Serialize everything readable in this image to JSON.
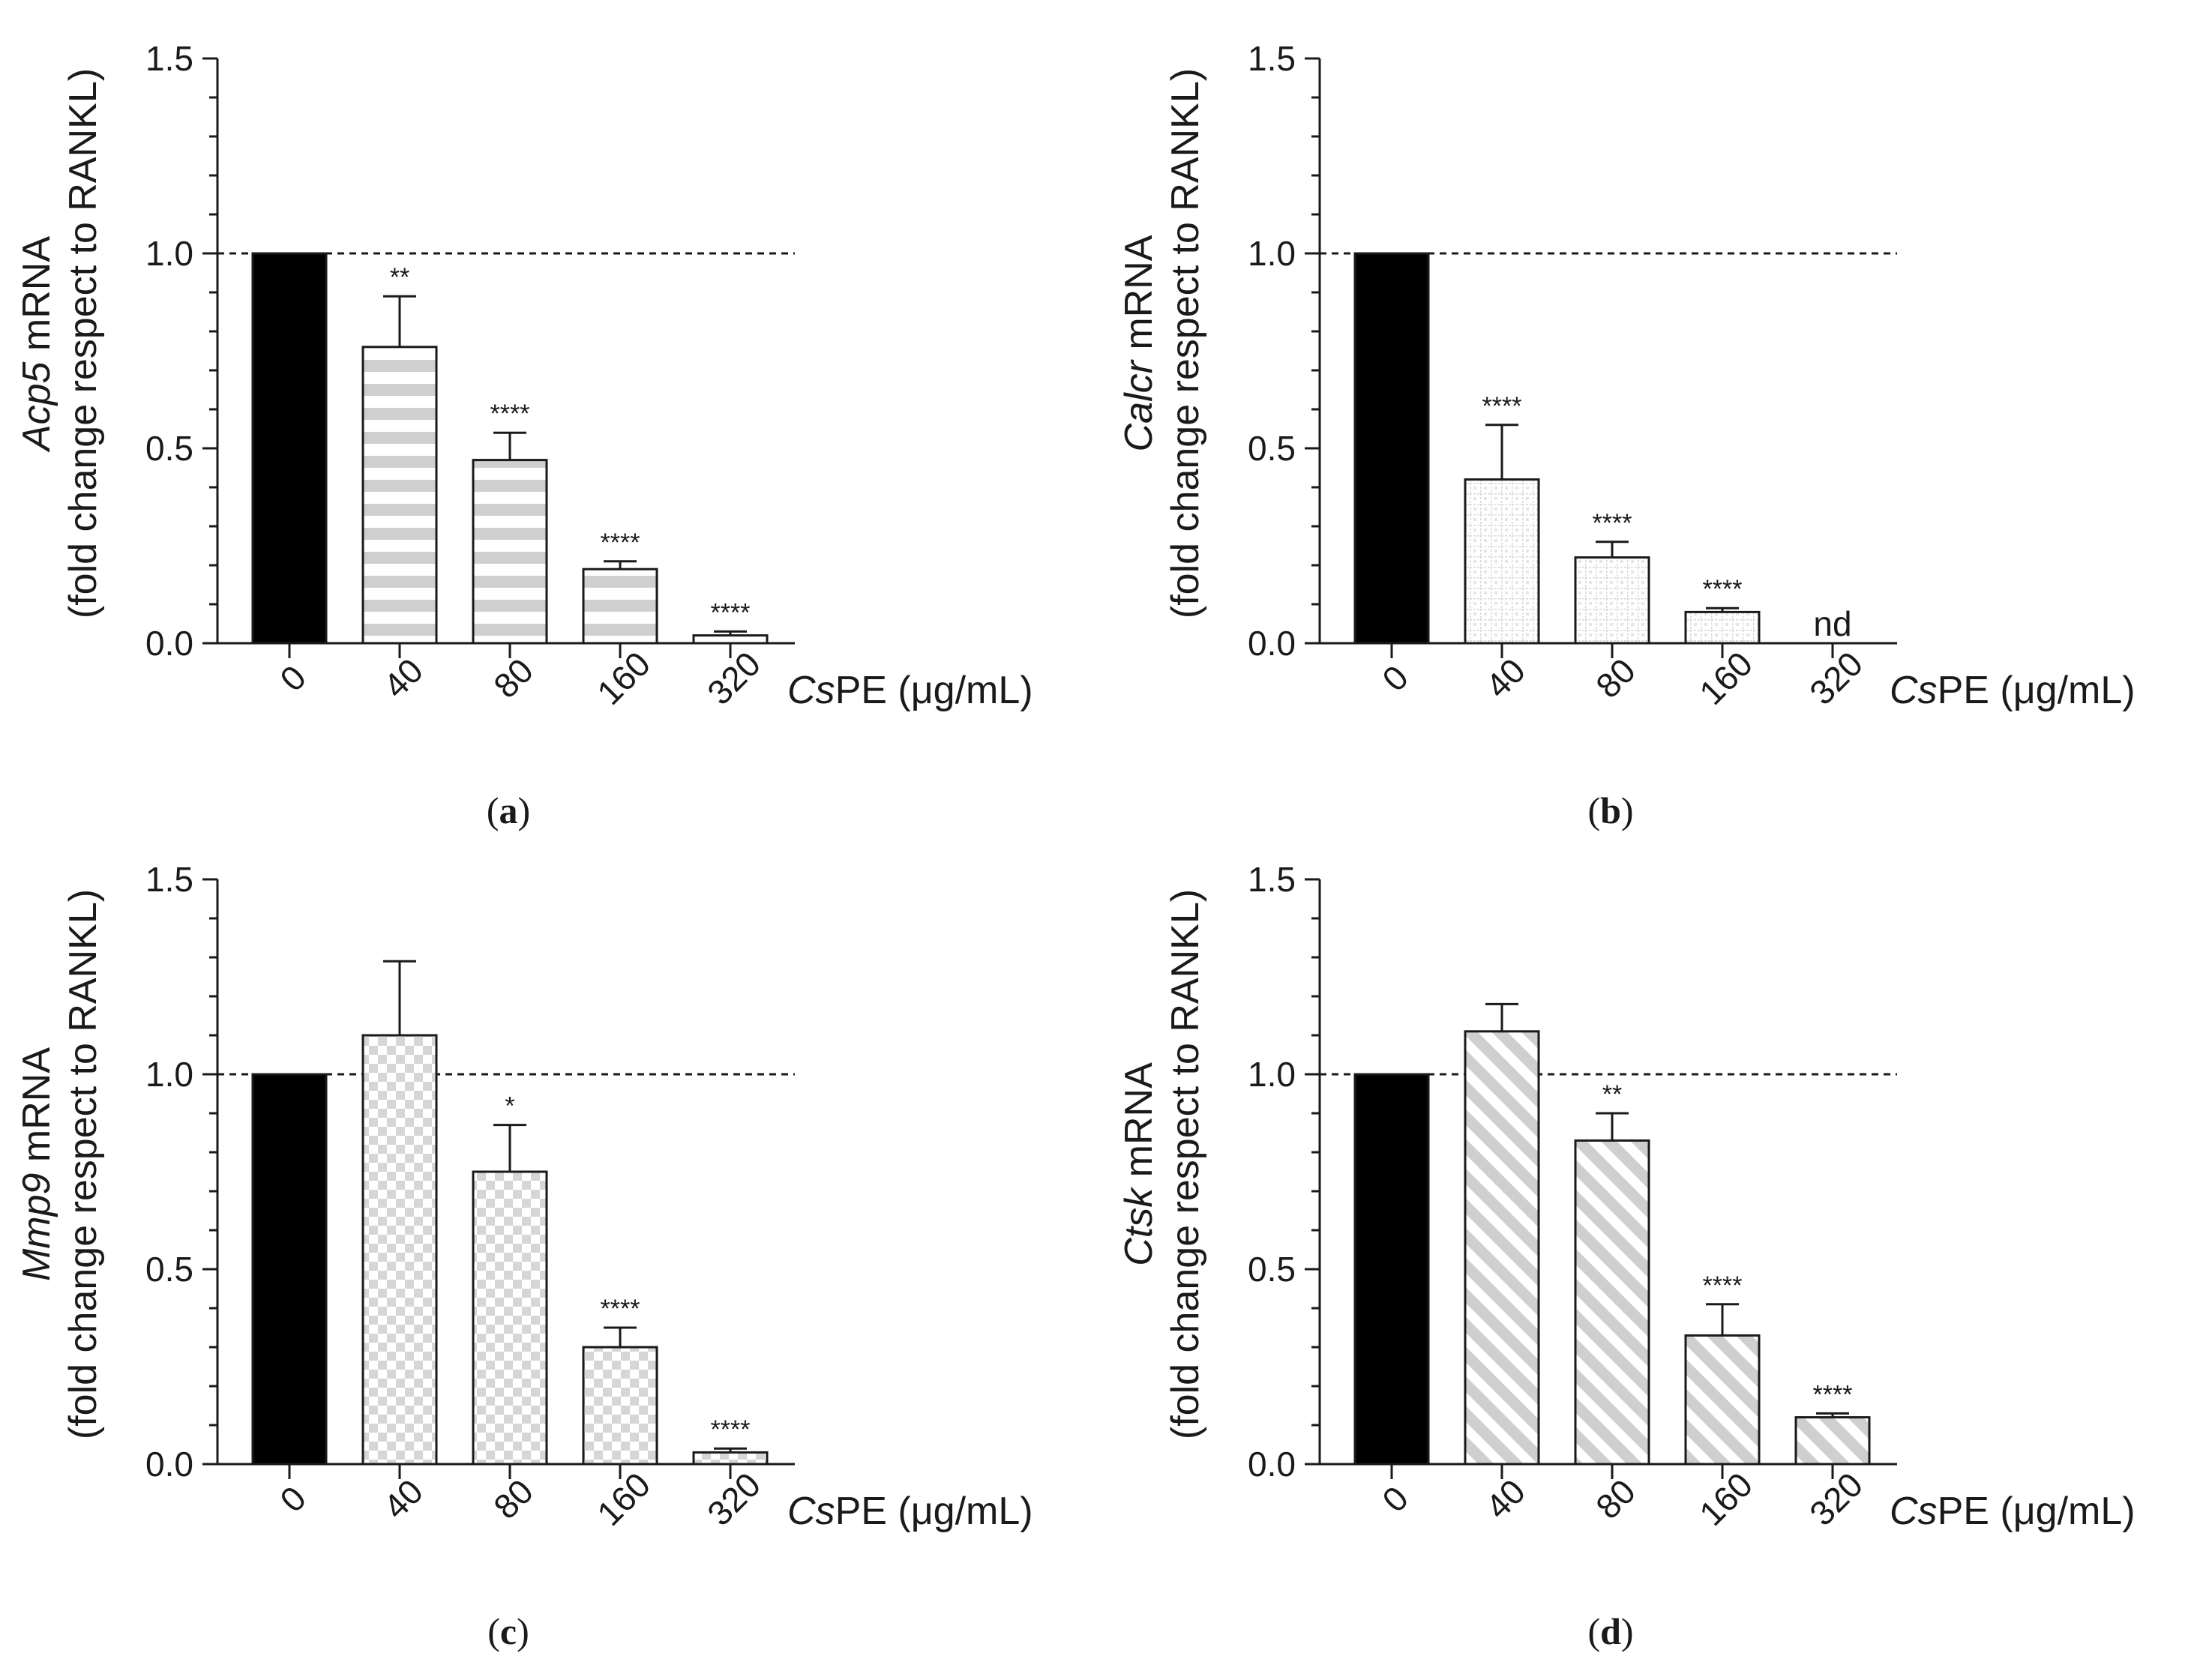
{
  "colors": {
    "axis": "#1a1a1a",
    "control_bar": "#000000",
    "pattern_gray": "#cfcfcf",
    "pattern_light": "#e2e2e2"
  },
  "chart_data": [
    {
      "panel": "(a)",
      "panel_letter": "a",
      "type": "bar",
      "gene": "Acp5",
      "ylabel_gene": "Acp5",
      "ylabel_rest": " mRNA",
      "ylabel_line2": "(fold change respect to RANKL)",
      "xlabel_prefix": "Cs",
      "xlabel_rest": "PE (μg/mL)",
      "categories": [
        "0",
        "40",
        "80",
        "160",
        "320"
      ],
      "values": [
        1.0,
        0.76,
        0.47,
        0.19,
        0.02
      ],
      "errors": [
        0,
        0.13,
        0.07,
        0.02,
        0.01
      ],
      "significance": [
        "",
        "**",
        "****",
        "****",
        "****"
      ],
      "pattern": "horizontal-stripes",
      "reference_line": 1.0,
      "ylim": [
        0,
        1.5
      ],
      "yticks": [
        "0.0",
        "0.5",
        "1.0",
        "1.5"
      ]
    },
    {
      "panel": "(b)",
      "panel_letter": "b",
      "type": "bar",
      "gene": "Calcr",
      "ylabel_gene": "Calcr",
      "ylabel_rest": " mRNA",
      "ylabel_line2": "(fold change respect to RANKL)",
      "xlabel_prefix": "Cs",
      "xlabel_rest": "PE (μg/mL)",
      "categories": [
        "0",
        "40",
        "80",
        "160",
        "320"
      ],
      "values": [
        1.0,
        0.42,
        0.22,
        0.08,
        null
      ],
      "errors": [
        0,
        0.14,
        0.04,
        0.01,
        0
      ],
      "significance": [
        "",
        "****",
        "****",
        "****",
        ""
      ],
      "not_detected_label": "nd",
      "pattern": "dotted-grid",
      "reference_line": 1.0,
      "ylim": [
        0,
        1.5
      ],
      "yticks": [
        "0.0",
        "0.5",
        "1.0",
        "1.5"
      ]
    },
    {
      "panel": "(c)",
      "panel_letter": "c",
      "type": "bar",
      "gene": "Mmp9",
      "ylabel_gene": "Mmp9",
      "ylabel_rest": " mRNA",
      "ylabel_line2": "(fold change respect to RANKL)",
      "xlabel_prefix": "Cs",
      "xlabel_rest": "PE (μg/mL)",
      "categories": [
        "0",
        "40",
        "80",
        "160",
        "320"
      ],
      "values": [
        1.0,
        1.1,
        0.75,
        0.3,
        0.03
      ],
      "errors": [
        0,
        0.19,
        0.12,
        0.05,
        0.01
      ],
      "significance": [
        "",
        "",
        "*",
        "****",
        "****"
      ],
      "pattern": "checkerboard",
      "reference_line": 1.0,
      "ylim": [
        0,
        1.5
      ],
      "yticks": [
        "0.0",
        "0.5",
        "1.0",
        "1.5"
      ]
    },
    {
      "panel": "(d)",
      "panel_letter": "d",
      "type": "bar",
      "gene": "Ctsk",
      "ylabel_gene": "Ctsk",
      "ylabel_rest": " mRNA",
      "ylabel_line2": "(fold change respect to RANKL)",
      "xlabel_prefix": "Cs",
      "xlabel_rest": "PE (μg/mL)",
      "categories": [
        "0",
        "40",
        "80",
        "160",
        "320"
      ],
      "values": [
        1.0,
        1.11,
        0.83,
        0.33,
        0.12
      ],
      "errors": [
        0,
        0.07,
        0.07,
        0.08,
        0.01
      ],
      "significance": [
        "",
        "",
        "**",
        "****",
        "****"
      ],
      "pattern": "diagonal-stripes",
      "reference_line": 1.0,
      "ylim": [
        0,
        1.5
      ],
      "yticks": [
        "0.0",
        "0.5",
        "1.0",
        "1.5"
      ]
    }
  ]
}
